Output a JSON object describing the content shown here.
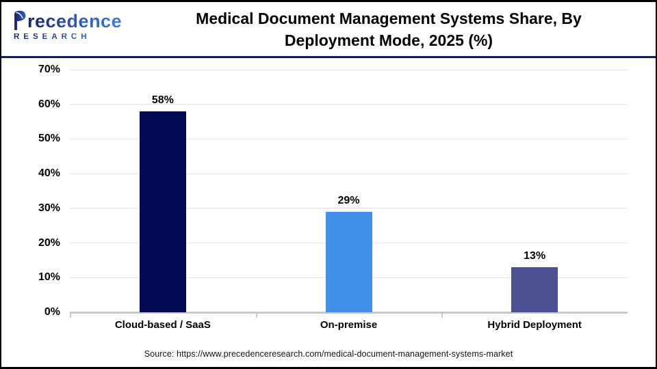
{
  "brand": {
    "wordmark": "Precedence",
    "subtitle": "RESEARCH"
  },
  "header": {
    "title_line1": "Medical Document Management Systems Share, By",
    "title_line2": "Deployment Mode, 2025 (%)"
  },
  "footer": {
    "source_text": "Source: https://www.precedenceresearch.com/medical-document-management-systems-market"
  },
  "chart_data": {
    "type": "bar",
    "title": "Medical Document Management Systems Share, By Deployment Mode, 2025 (%)",
    "categories": [
      "Cloud-based / SaaS",
      "On-premise",
      "Hybrid Deployment"
    ],
    "values": [
      58,
      29,
      13
    ],
    "value_labels": [
      "58%",
      "29%",
      "13%"
    ],
    "bar_colors": [
      "#030a52",
      "#4191e8",
      "#4d5294"
    ],
    "xlabel": "",
    "ylabel": "",
    "ylim": [
      0,
      70
    ],
    "yticks": [
      0,
      10,
      20,
      30,
      40,
      50,
      60,
      70
    ],
    "ytick_labels": [
      "0%",
      "10%",
      "20%",
      "30%",
      "40%",
      "50%",
      "60%",
      "70%"
    ],
    "grid": "horizontal gridlines on",
    "legend": "none"
  },
  "colors": {
    "frame_border": "#000000",
    "header_rule": "#171b52",
    "gridline": "#e3e3e3",
    "axis_line": "#c8c8c8",
    "logo_gradient_start": "#16246b",
    "logo_gradient_end": "#3a7de2"
  }
}
